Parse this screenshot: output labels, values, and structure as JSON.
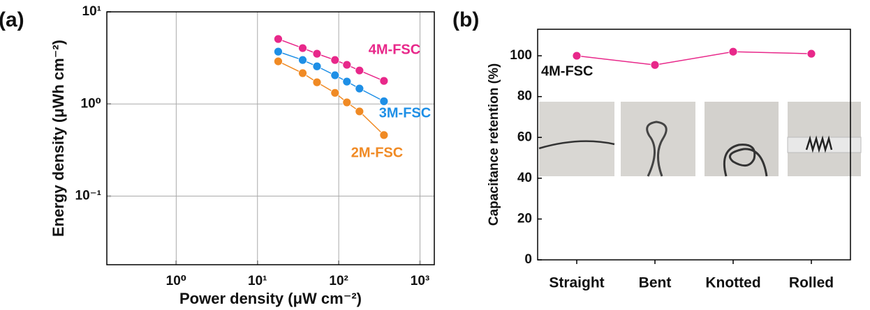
{
  "chart_data": [
    {
      "type": "line",
      "panel": "(a)",
      "xlabel": "Power density (μW cm⁻²)",
      "ylabel": "Energy density (μWh cm⁻²)",
      "xlog": true,
      "ylog": true,
      "grid": true,
      "xlim": [
        0.14,
        1500
      ],
      "ylim": [
        0.018,
        10
      ],
      "xticks": [
        {
          "value": 1,
          "label": "10⁰"
        },
        {
          "value": 10,
          "label": "10¹"
        },
        {
          "value": 100,
          "label": "10²"
        },
        {
          "value": 1000,
          "label": "10³"
        }
      ],
      "yticks": [
        {
          "value": 0.1,
          "label": "10⁻¹"
        },
        {
          "value": 1,
          "label": "10⁰"
        },
        {
          "value": 10,
          "label": "10¹"
        }
      ],
      "x": [
        18,
        36,
        54,
        90,
        126,
        180,
        360
      ],
      "series": [
        {
          "name": "4M-FSC",
          "color": "#e8288a",
          "values": [
            5.07,
            4.04,
            3.51,
            3.0,
            2.66,
            2.31,
            1.78
          ]
        },
        {
          "name": "3M-FSC",
          "color": "#1e8fe6",
          "values": [
            3.7,
            3.0,
            2.56,
            2.05,
            1.75,
            1.47,
            1.07
          ]
        },
        {
          "name": "2M-FSC",
          "color": "#f08a24",
          "values": [
            2.9,
            2.16,
            1.72,
            1.32,
            1.04,
            0.83,
            0.46
          ]
        }
      ]
    },
    {
      "type": "line",
      "panel": "(b)",
      "ylabel": "Capacitance retention (%)",
      "annotation": "4M-FSC",
      "ylim": [
        0,
        113
      ],
      "yticks": [
        0,
        20,
        40,
        60,
        80,
        100
      ],
      "categories": [
        "Straight",
        "Bent",
        "Knotted",
        "Rolled"
      ],
      "series": [
        {
          "name": "4M-FSC",
          "color": "#e8288a",
          "values": [
            100,
            95.5,
            102,
            101
          ]
        }
      ]
    }
  ]
}
